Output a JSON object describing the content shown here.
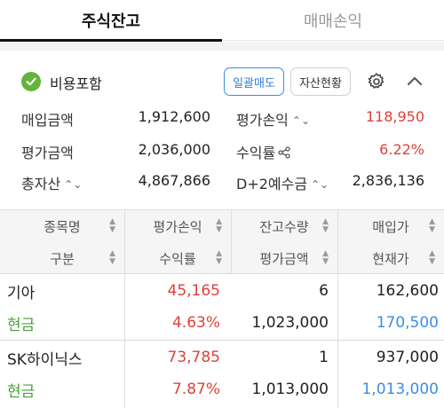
{
  "tabs": [
    {
      "label": "주식잔고"
    },
    {
      "label": "매매손익"
    }
  ],
  "summary": {
    "include_fees_label": "비용포함",
    "bulk_sell_label": "일괄매도",
    "asset_status_label": "자산현황",
    "purchase_amount_label": "매입금액",
    "purchase_amount_value": "1,912,600",
    "eval_amount_label": "평가금액",
    "eval_amount_value": "2,036,000",
    "total_assets_label": "총자산",
    "total_assets_value": "4,867,866",
    "eval_pl_label": "평가손익",
    "eval_pl_value": "118,950",
    "return_rate_label": "수익률",
    "return_rate_value": "6.22%",
    "d2_deposit_label": "D+2예수금",
    "d2_deposit_value": "2,836,136"
  },
  "table": {
    "headers_row1": [
      "종목명",
      "평가손익",
      "잔고수량",
      "매입가"
    ],
    "headers_row2": [
      "구분",
      "수익률",
      "평가금액",
      "현재가"
    ],
    "rows": [
      {
        "name": "기아",
        "pl": "45,165",
        "qty": "6",
        "buy_price": "162,600",
        "category": "현금",
        "rate": "4.63%",
        "eval_amount": "1,023,000",
        "cur_price": "170,500"
      },
      {
        "name": "SK하이닉스",
        "pl": "73,785",
        "qty": "1",
        "buy_price": "937,000",
        "category": "현금",
        "rate": "7.87%",
        "eval_amount": "1,013,000",
        "cur_price": "1,013,000"
      }
    ]
  },
  "colors": {
    "profit_red": "#e0403a",
    "category_green": "#4ba03a",
    "price_up_blue": "#3a8ee6",
    "check_green": "#62b53a"
  }
}
